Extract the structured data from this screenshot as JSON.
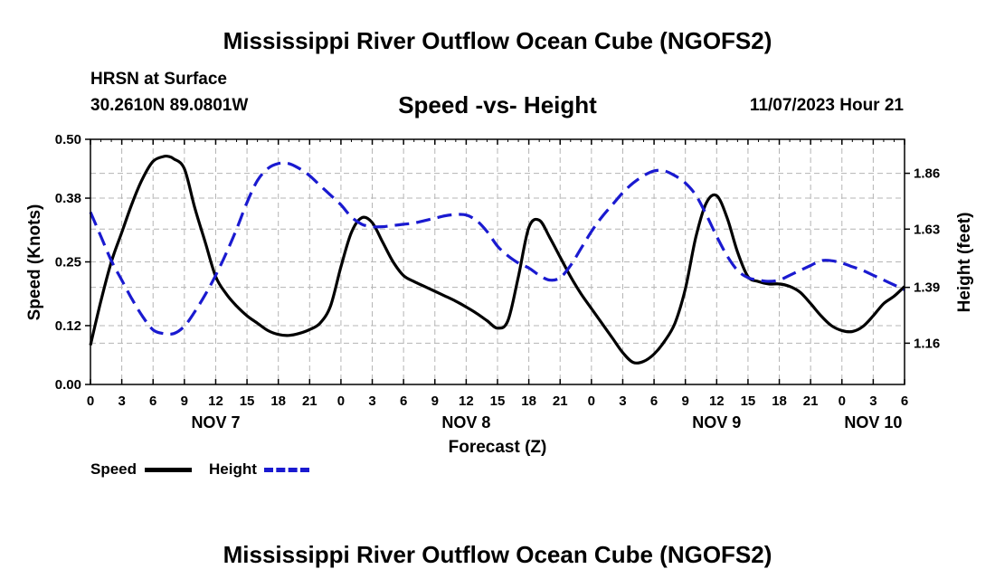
{
  "page": {
    "title": "Mississippi River Outflow Ocean Cube (NGOFS2)",
    "bottom_title": "Mississippi River Outflow Ocean Cube (NGOFS2)",
    "station_name": "HRSN at Surface",
    "station_coords": "30.2610N  89.0801W",
    "subtitle": "Speed -vs- Height",
    "timestamp": "11/07/2023 Hour 21"
  },
  "colors": {
    "speed": "#000000",
    "height": "#1a1ad0",
    "grid": "#b4b4b4"
  },
  "chart_data": {
    "type": "line",
    "title": "Speed -vs- Height",
    "xlabel": "Forecast (Z)",
    "ylabel": "Speed (Knots)",
    "y2label": "Height (feet)",
    "xlim": [
      0,
      78
    ],
    "ylim": [
      0,
      0.5
    ],
    "y2lim": [
      0.99,
      2.0
    ],
    "grid": true,
    "x_ticks": [
      0,
      3,
      6,
      9,
      12,
      15,
      18,
      21,
      24,
      27,
      30,
      33,
      36,
      39,
      42,
      45,
      48,
      51,
      54,
      57,
      60,
      63,
      66,
      69,
      72,
      75,
      78
    ],
    "x_tick_labels": [
      "0",
      "3",
      "6",
      "9",
      "12",
      "15",
      "18",
      "21",
      "0",
      "3",
      "6",
      "9",
      "12",
      "15",
      "18",
      "21",
      "0",
      "3",
      "6",
      "9",
      "12",
      "15",
      "18",
      "21",
      "0",
      "3",
      "6"
    ],
    "day_labels": [
      {
        "x": 12,
        "label": "NOV 7"
      },
      {
        "x": 36,
        "label": "NOV 8"
      },
      {
        "x": 60,
        "label": "NOV 9"
      },
      {
        "x": 75,
        "label": "NOV 10"
      }
    ],
    "y_ticks": [
      0.0,
      0.12,
      0.25,
      0.38,
      0.5
    ],
    "y_tick_labels": [
      "0.00",
      "0.12",
      "0.25",
      "0.38",
      "0.50"
    ],
    "y2_ticks": [
      1.16,
      1.39,
      1.63,
      1.86
    ],
    "y2_tick_labels": [
      "1.16",
      "1.39",
      "1.63",
      "1.86"
    ],
    "legend": [
      {
        "name": "Speed",
        "style": "solid"
      },
      {
        "name": "Height",
        "style": "dashed"
      }
    ],
    "series": [
      {
        "name": "Speed",
        "axis": "left",
        "x": [
          0,
          1,
          2,
          3,
          4,
          5,
          6,
          7,
          7.5,
          8,
          9,
          10,
          11,
          12,
          13,
          14,
          15,
          16,
          17,
          18,
          19,
          20,
          21,
          22,
          23,
          24,
          25,
          26,
          27,
          28,
          29,
          30,
          31,
          32,
          33,
          34,
          35,
          36,
          37,
          38,
          39,
          40,
          41,
          42,
          43,
          44,
          45,
          46,
          47,
          48,
          49,
          50,
          51,
          52,
          53,
          54,
          55,
          56,
          57,
          58,
          59,
          60,
          61,
          62,
          63,
          64,
          65,
          66,
          67,
          68,
          69,
          70,
          71,
          72,
          73,
          74,
          75,
          76,
          77,
          78
        ],
        "values": [
          0.08,
          0.17,
          0.25,
          0.31,
          0.37,
          0.42,
          0.455,
          0.465,
          0.465,
          0.46,
          0.44,
          0.36,
          0.29,
          0.22,
          0.185,
          0.16,
          0.14,
          0.125,
          0.11,
          0.102,
          0.1,
          0.104,
          0.112,
          0.125,
          0.16,
          0.24,
          0.31,
          0.34,
          0.33,
          0.29,
          0.25,
          0.222,
          0.21,
          0.2,
          0.19,
          0.18,
          0.17,
          0.158,
          0.145,
          0.13,
          0.115,
          0.13,
          0.22,
          0.32,
          0.335,
          0.3,
          0.26,
          0.22,
          0.185,
          0.155,
          0.125,
          0.095,
          0.065,
          0.045,
          0.047,
          0.062,
          0.088,
          0.125,
          0.195,
          0.3,
          0.37,
          0.385,
          0.34,
          0.27,
          0.22,
          0.21,
          0.205,
          0.205,
          0.2,
          0.188,
          0.165,
          0.14,
          0.12,
          0.11,
          0.108,
          0.118,
          0.14,
          0.165,
          0.18,
          0.2
        ]
      },
      {
        "name": "Height",
        "axis": "right",
        "x": [
          0,
          1,
          2,
          3,
          4,
          5,
          6,
          7,
          8,
          9,
          10,
          11,
          12,
          13,
          14,
          15,
          16,
          17,
          18,
          19,
          20,
          21,
          22,
          23,
          24,
          25,
          26,
          27,
          28,
          29,
          30,
          31,
          32,
          33,
          34,
          35,
          36,
          37,
          38,
          39,
          40,
          41,
          42,
          43,
          44,
          45,
          46,
          47,
          48,
          49,
          50,
          51,
          52,
          53,
          54,
          55,
          56,
          57,
          58,
          59,
          60,
          61,
          62,
          63,
          64,
          65,
          66,
          67,
          68,
          69,
          70,
          71,
          72,
          73,
          74,
          75,
          76,
          77,
          78
        ],
        "values": [
          1.7,
          1.6,
          1.5,
          1.42,
          1.34,
          1.27,
          1.215,
          1.2,
          1.2,
          1.23,
          1.29,
          1.36,
          1.44,
          1.53,
          1.63,
          1.74,
          1.83,
          1.88,
          1.9,
          1.9,
          1.88,
          1.85,
          1.81,
          1.77,
          1.73,
          1.68,
          1.65,
          1.64,
          1.64,
          1.645,
          1.65,
          1.655,
          1.665,
          1.675,
          1.685,
          1.69,
          1.688,
          1.665,
          1.62,
          1.56,
          1.52,
          1.49,
          1.47,
          1.44,
          1.42,
          1.43,
          1.48,
          1.55,
          1.62,
          1.68,
          1.73,
          1.78,
          1.82,
          1.85,
          1.87,
          1.87,
          1.85,
          1.82,
          1.77,
          1.69,
          1.6,
          1.52,
          1.46,
          1.43,
          1.42,
          1.415,
          1.42,
          1.44,
          1.46,
          1.48,
          1.5,
          1.5,
          1.49,
          1.475,
          1.46,
          1.44,
          1.42,
          1.4,
          1.38
        ]
      }
    ]
  }
}
